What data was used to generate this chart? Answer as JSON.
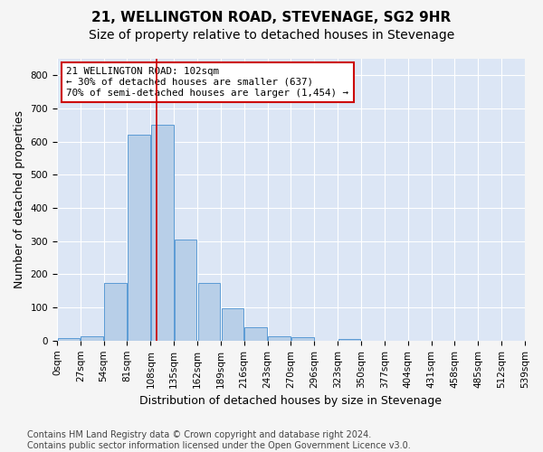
{
  "title": "21, WELLINGTON ROAD, STEVENAGE, SG2 9HR",
  "subtitle": "Size of property relative to detached houses in Stevenage",
  "xlabel": "Distribution of detached houses by size in Stevenage",
  "ylabel": "Number of detached properties",
  "bar_color": "#b8cfe8",
  "bar_edge_color": "#5b9bd5",
  "background_color": "#dce6f5",
  "grid_color": "#ffffff",
  "bin_labels": [
    "0sqm",
    "27sqm",
    "54sqm",
    "81sqm",
    "108sqm",
    "135sqm",
    "162sqm",
    "189sqm",
    "216sqm",
    "243sqm",
    "270sqm",
    "296sqm",
    "323sqm",
    "350sqm",
    "377sqm",
    "404sqm",
    "431sqm",
    "458sqm",
    "485sqm",
    "512sqm",
    "539sqm"
  ],
  "bar_values": [
    7,
    13,
    175,
    620,
    650,
    305,
    175,
    98,
    40,
    13,
    10,
    0,
    5,
    0,
    0,
    0,
    0,
    0,
    0,
    0
  ],
  "vline_bin_index": 3.74,
  "annotation_text": "21 WELLINGTON ROAD: 102sqm\n← 30% of detached houses are smaller (637)\n70% of semi-detached houses are larger (1,454) →",
  "annotation_box_color": "#ffffff",
  "annotation_box_edge_color": "#cc0000",
  "vline_color": "#cc0000",
  "ylim": [
    0,
    850
  ],
  "yticks": [
    0,
    100,
    200,
    300,
    400,
    500,
    600,
    700,
    800
  ],
  "footer_text": "Contains HM Land Registry data © Crown copyright and database right 2024.\nContains public sector information licensed under the Open Government Licence v3.0.",
  "title_fontsize": 11,
  "subtitle_fontsize": 10,
  "xlabel_fontsize": 9,
  "ylabel_fontsize": 9,
  "tick_fontsize": 7.5,
  "footer_fontsize": 7
}
